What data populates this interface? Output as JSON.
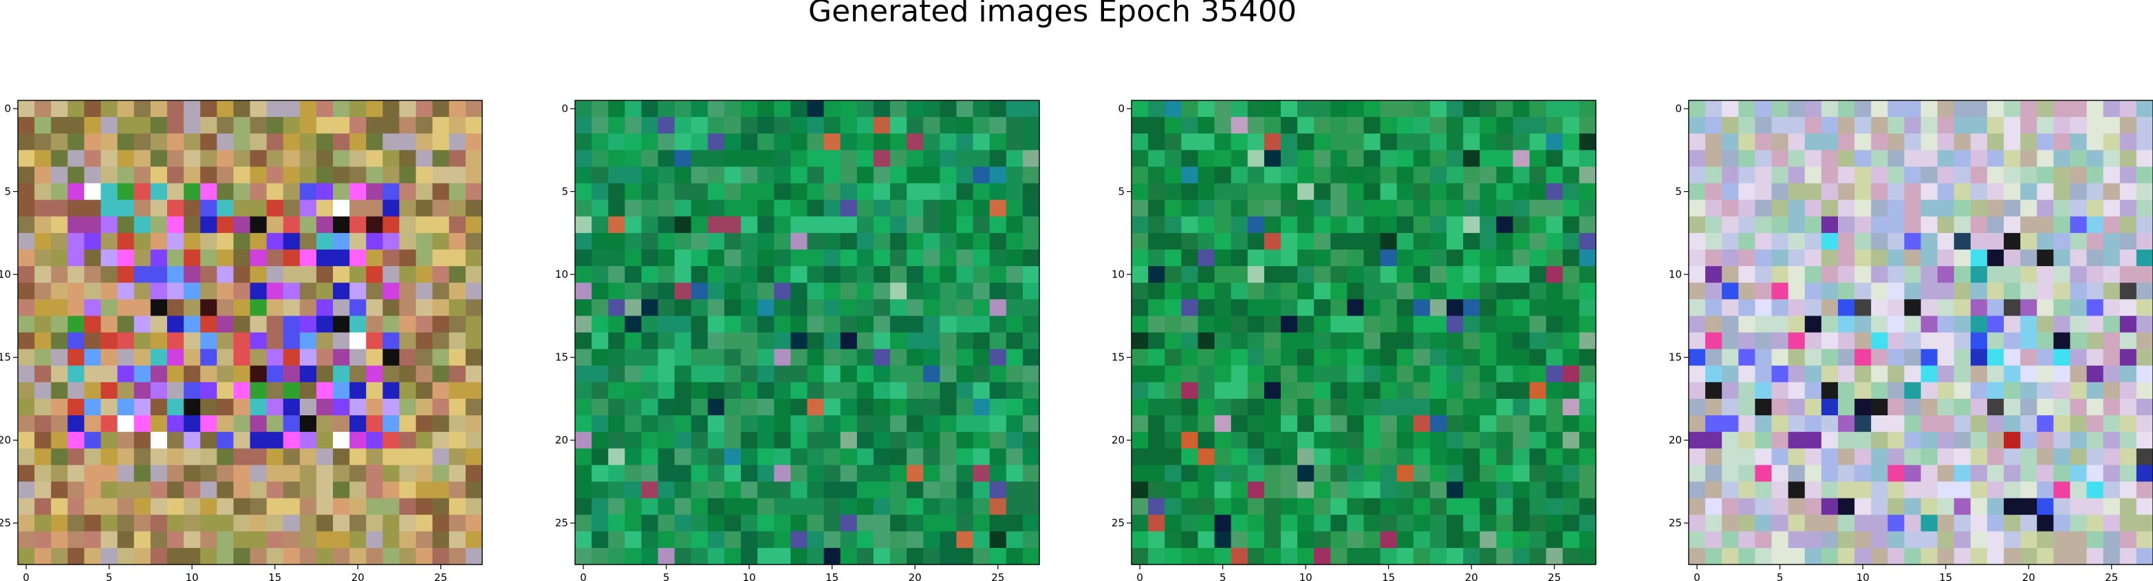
{
  "chart_data": {
    "title": "Generated images Epoch 35400",
    "type": "heatmap",
    "grid": false,
    "legend": "none",
    "panels": [
      {
        "name": "",
        "shape": [
          28,
          28
        ],
        "xlim": [
          -0.5,
          27.5
        ],
        "ylim": [
          27.5,
          -0.5
        ],
        "xticks": [
          0,
          5,
          10,
          15,
          20,
          25
        ],
        "yticks": [
          0,
          5,
          10,
          15,
          20,
          25
        ],
        "palette": [
          "#a89a5a",
          "#c0a040",
          "#8a7a4a",
          "#b88a6a",
          "#d0b070",
          "#9a9a4a",
          "#c4b880",
          "#7a6a3a",
          "#a86a5a",
          "#d8a070",
          "#6a7a3a",
          "#b0a8b8",
          "#d0c090",
          "#8a5a3a",
          "#c08070",
          "#9ab070",
          "#e0c878"
        ],
        "highlight_colors": [
          "#8040ff",
          "#b070ff",
          "#5050f0",
          "#c0a0ff",
          "#d040e0",
          "#3a1010",
          "#ff60ff",
          "#2020c0",
          "#60a0ff",
          "#e05050",
          "#40c0c0",
          "#101010",
          "#30a030",
          "#ffffff",
          "#d04030",
          "#a040a0"
        ],
        "center_region": {
          "rows": [
            5,
            20
          ],
          "cols": [
            3,
            22
          ],
          "fraction": 0.55
        }
      },
      {
        "name": "",
        "shape": [
          28,
          28
        ],
        "xlim": [
          -0.5,
          27.5
        ],
        "ylim": [
          27.5,
          -0.5
        ],
        "xticks": [
          0,
          5,
          10,
          15,
          20,
          25
        ],
        "yticks": [
          0,
          5,
          10,
          15,
          20,
          25
        ],
        "palette": [
          "#0a8a4a",
          "#10a050",
          "#1a7a4a",
          "#0c6a3a",
          "#20b070",
          "#2a9a5a",
          "#0f7f45",
          "#15b060",
          "#3a9a60",
          "#0a6a40",
          "#18906a",
          "#2fc080",
          "#08803c",
          "#1a8f55",
          "#46a070",
          "#0e9a48"
        ],
        "highlight_colors": [
          "#003040",
          "#0a1a3a",
          "#2060a0",
          "#1a8aa0",
          "#c06040",
          "#d06a40",
          "#a04060",
          "#b090c0",
          "#80b090",
          "#0a3a20",
          "#5050a0",
          "#a0d0b0"
        ],
        "center_region": {
          "rows": [
            0,
            27
          ],
          "cols": [
            0,
            27
          ],
          "fraction": 0.08
        }
      },
      {
        "name": "",
        "shape": [
          28,
          28
        ],
        "xlim": [
          -0.5,
          27.5
        ],
        "ylim": [
          27.5,
          -0.5
        ],
        "xticks": [
          0,
          5,
          10,
          15,
          20,
          25
        ],
        "yticks": [
          0,
          5,
          10,
          15,
          20,
          25
        ],
        "palette": [
          "#0a8a40",
          "#12a048",
          "#1a7a40",
          "#0c6a34",
          "#22b068",
          "#2a9a50",
          "#0f7f3e",
          "#16b05a",
          "#3a9a58",
          "#0a6a38",
          "#1a9060",
          "#30c078",
          "#08803a",
          "#1a8f50",
          "#48a068",
          "#0e9a44"
        ],
        "highlight_colors": [
          "#003040",
          "#0a1a3a",
          "#2060a0",
          "#1a8aa0",
          "#c05040",
          "#d06030",
          "#a03060",
          "#c0a0c0",
          "#80b090",
          "#0a3a20",
          "#5050a0",
          "#a0d0b0"
        ],
        "center_region": {
          "rows": [
            0,
            27
          ],
          "cols": [
            0,
            27
          ],
          "fraction": 0.08
        }
      },
      {
        "name": "",
        "shape": [
          28,
          28
        ],
        "xlim": [
          -0.5,
          27.5
        ],
        "ylim": [
          27.5,
          -0.5
        ],
        "xticks": [
          0,
          5,
          10,
          15,
          20,
          25
        ],
        "yticks": [
          0,
          5,
          10,
          15,
          20,
          25
        ],
        "palette": [
          "#c0c8e8",
          "#b0d8c0",
          "#d8c0e0",
          "#a8b8e8",
          "#c8e0d0",
          "#e0d0e8",
          "#b8a8d8",
          "#90c0d0",
          "#d0d8a8",
          "#a0b0c8",
          "#e8e0f0",
          "#b0c090",
          "#c0b0a0",
          "#98d0b0",
          "#d0a8c0",
          "#e0e8d8"
        ],
        "highlight_colors": [
          "#101030",
          "#2030c0",
          "#40e0f0",
          "#c02020",
          "#7030a0",
          "#1a1a1a",
          "#3050f0",
          "#a060c0",
          "#204060",
          "#e0e0ff",
          "#20a0a0",
          "#f040a0",
          "#404040",
          "#6060ff",
          "#80d0f0"
        ],
        "center_region": {
          "rows": [
            7,
            25
          ],
          "cols": [
            0,
            27
          ],
          "fraction": 0.18
        }
      }
    ]
  }
}
